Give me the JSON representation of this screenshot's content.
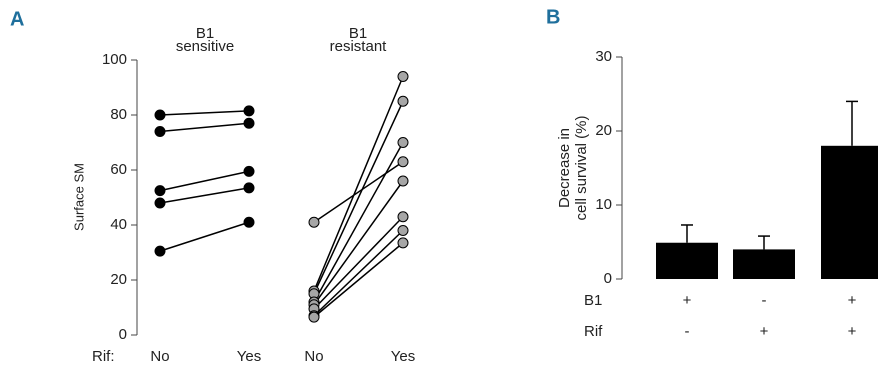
{
  "chart_data": [
    {
      "type": "line",
      "panel": "A",
      "group_labels": [
        [
          "B1",
          "sensitive"
        ],
        [
          "B1",
          "resistant"
        ]
      ],
      "x_prefix": "Rif:",
      "categories": [
        "No",
        "Yes",
        "No",
        "Yes"
      ],
      "ylabel": "Surface SM",
      "ylim": [
        0,
        100
      ],
      "yticks": [
        0,
        20,
        40,
        60,
        80,
        100
      ],
      "series": [
        {
          "color": "#000000",
          "values": [
            80,
            81.5,
            null,
            null
          ]
        },
        {
          "color": "#000000",
          "values": [
            74,
            77,
            null,
            null
          ]
        },
        {
          "color": "#000000",
          "values": [
            52.5,
            59.5,
            null,
            null
          ]
        },
        {
          "color": "#000000",
          "values": [
            48,
            53.5,
            null,
            null
          ]
        },
        {
          "color": "#000000",
          "values": [
            30.5,
            41,
            null,
            null
          ]
        },
        {
          "color": "#a6a6a6",
          "values": [
            null,
            null,
            41,
            63
          ]
        },
        {
          "color": "#a6a6a6",
          "values": [
            null,
            null,
            16,
            94
          ]
        },
        {
          "color": "#a6a6a6",
          "values": [
            null,
            null,
            15,
            85
          ]
        },
        {
          "color": "#a6a6a6",
          "values": [
            null,
            null,
            12,
            70
          ]
        },
        {
          "color": "#a6a6a6",
          "values": [
            null,
            null,
            11,
            56
          ]
        },
        {
          "color": "#a6a6a6",
          "values": [
            null,
            null,
            9.5,
            43
          ]
        },
        {
          "color": "#a6a6a6",
          "values": [
            null,
            null,
            7,
            38
          ]
        },
        {
          "color": "#a6a6a6",
          "values": [
            null,
            null,
            6.5,
            33.5
          ]
        }
      ]
    },
    {
      "type": "bar",
      "panel": "B",
      "ylabel": [
        "Decrease in",
        "cell survival (%)"
      ],
      "conditions": [
        {
          "label": "B1",
          "values": [
            "+",
            "-",
            "+"
          ]
        },
        {
          "label": "Rif",
          "values": [
            "-",
            "+",
            "+"
          ]
        }
      ],
      "values": [
        4.9,
        4.0,
        18
      ],
      "errors": [
        2.4,
        1.8,
        6
      ],
      "color": "#000000",
      "ylim": [
        0,
        30
      ],
      "yticks": [
        0,
        10,
        20,
        30
      ]
    }
  ]
}
